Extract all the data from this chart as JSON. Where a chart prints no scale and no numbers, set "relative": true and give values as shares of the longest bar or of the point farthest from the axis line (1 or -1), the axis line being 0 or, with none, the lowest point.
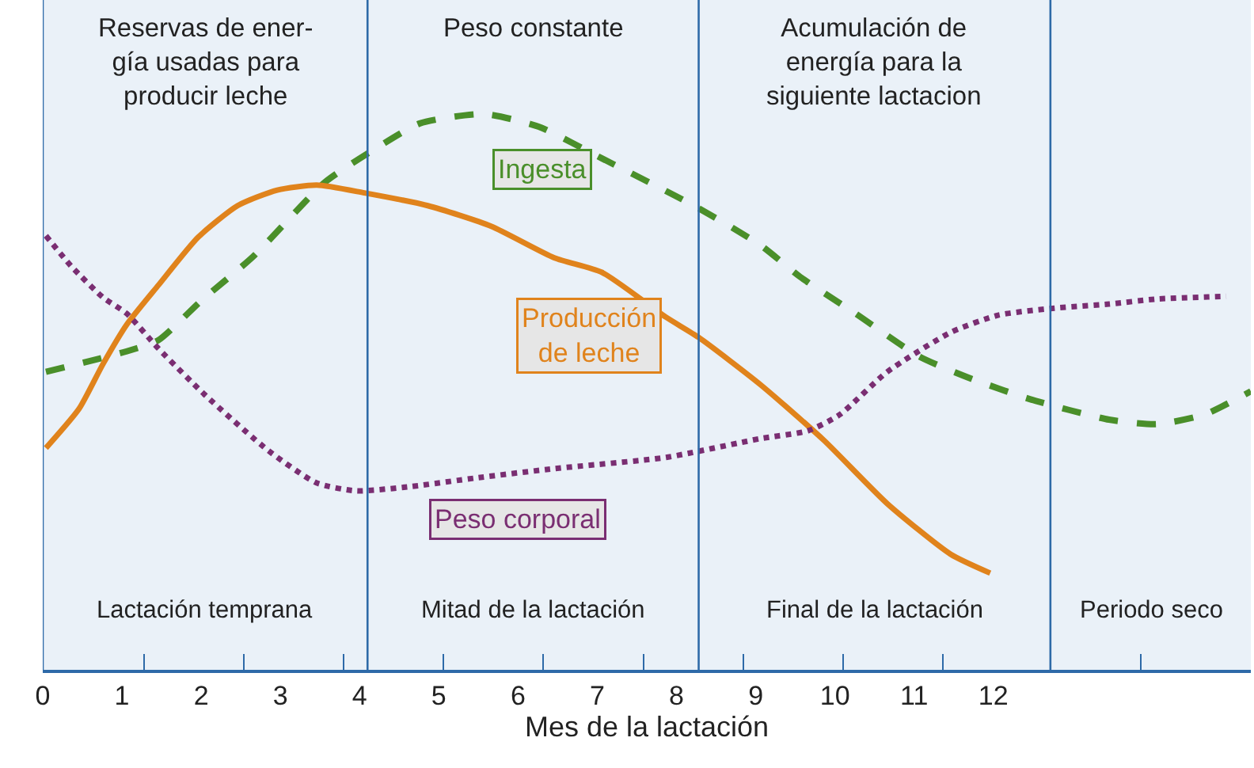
{
  "chart_data": {
    "type": "line",
    "relative": true,
    "xlabel": "Mes de la lactación",
    "xlim": [
      0,
      15.25
    ],
    "xticks": [
      0,
      1,
      2,
      3,
      4,
      5,
      6,
      7,
      8,
      9,
      10,
      11,
      12,
      {
        "value": 1.28,
        "label": null
      },
      {
        "value": 2.54,
        "label": null
      },
      {
        "value": 3.8,
        "label": null
      },
      {
        "value": 5.06,
        "label": null
      },
      {
        "value": 6.32,
        "label": null
      },
      {
        "value": 7.58,
        "label": null
      },
      {
        "value": 8.84,
        "label": null
      },
      {
        "value": 10.1,
        "label": null
      },
      {
        "value": 11.36,
        "label": null
      },
      {
        "value": 13.86,
        "label": null
      }
    ],
    "legend": false,
    "grid": false,
    "series": [
      {
        "name": "Ingesta",
        "color": "#4a8f2a",
        "line_style": "dashed",
        "x": [
          0.04,
          1.06,
          1.46,
          2.0,
          2.66,
          3.56,
          4.16,
          4.76,
          5.56,
          6.26,
          7.06,
          8.26,
          9.06,
          9.56,
          10.26,
          11.06,
          11.66,
          12.46,
          13.46,
          14.06,
          14.66,
          15.25
        ],
        "values": [
          0.536,
          0.573,
          0.593,
          0.664,
          0.744,
          0.877,
          0.934,
          0.983,
          1.0,
          0.977,
          0.92,
          0.832,
          0.764,
          0.707,
          0.641,
          0.564,
          0.527,
          0.487,
          0.45,
          0.442,
          0.459,
          0.501
        ]
      },
      {
        "name": "Producción de leche",
        "color": "#e0831c",
        "line_style": "solid",
        "x": [
          0.04,
          0.46,
          0.76,
          1.06,
          1.46,
          1.96,
          2.46,
          2.96,
          3.46,
          4.06,
          4.86,
          5.66,
          6.46,
          7.06,
          7.86,
          8.28,
          9.06,
          9.86,
          10.66,
          11.46,
          11.96
        ],
        "values": [
          0.399,
          0.47,
          0.55,
          0.621,
          0.692,
          0.778,
          0.835,
          0.863,
          0.872,
          0.858,
          0.835,
          0.798,
          0.741,
          0.715,
          0.635,
          0.598,
          0.513,
          0.413,
          0.299,
          0.208,
          0.174
        ]
      },
      {
        "name": "Peso corporal",
        "color": "#7a2e72",
        "line_style": "dotted",
        "x": [
          0.04,
          0.36,
          0.76,
          1.06,
          1.46,
          2.06,
          2.86,
          3.46,
          3.96,
          4.66,
          5.46,
          6.46,
          7.86,
          9.06,
          9.66,
          10.06,
          10.66,
          11.46,
          12.06,
          12.72,
          13.46,
          14.06,
          14.94
        ],
        "values": [
          0.781,
          0.726,
          0.67,
          0.641,
          0.578,
          0.493,
          0.393,
          0.336,
          0.322,
          0.33,
          0.345,
          0.362,
          0.382,
          0.416,
          0.43,
          0.459,
          0.536,
          0.607,
          0.638,
          0.65,
          0.658,
          0.667,
          0.672
        ]
      }
    ],
    "ref_lines": [
      {
        "axis": "x",
        "value": 0,
        "color": "#2e6aa8"
      },
      {
        "axis": "x",
        "value": 4.1,
        "color": "#2e6aa8"
      },
      {
        "axis": "x",
        "value": 8.28,
        "color": "#2e6aa8"
      },
      {
        "axis": "x",
        "value": 12.72,
        "color": "#2e6aa8"
      }
    ],
    "annotations": [
      "Reservas de ener-\ngía usadas para\nproducir leche",
      "Peso constante",
      "Acumulación de\nenergía para la\nsiguiente lactacion",
      "Lactación temprana",
      "Mitad de la lactación",
      "Final de la lactación",
      "Periodo seco"
    ]
  }
}
